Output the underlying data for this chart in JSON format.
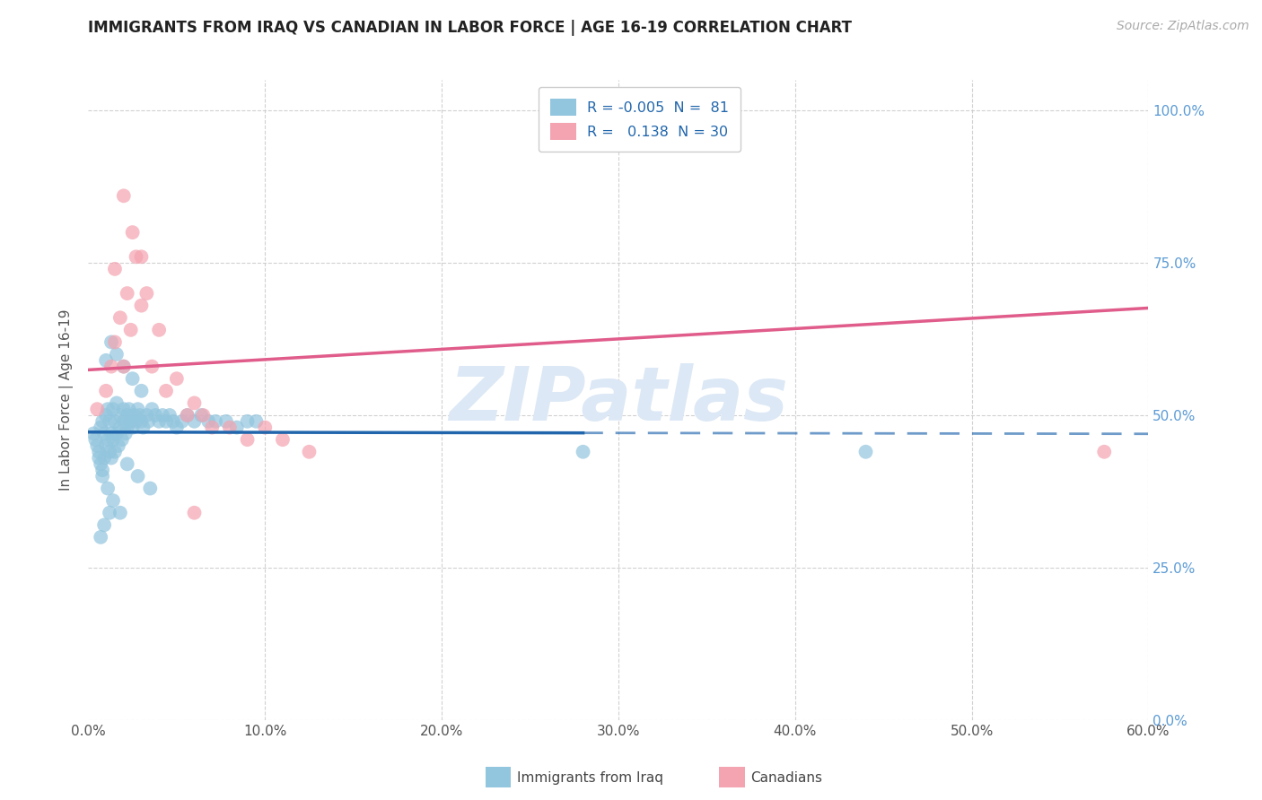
{
  "title": "IMMIGRANTS FROM IRAQ VS CANADIAN IN LABOR FORCE | AGE 16-19 CORRELATION CHART",
  "source_text": "Source: ZipAtlas.com",
  "ylabel": "In Labor Force | Age 16-19",
  "legend_label_1": "Immigrants from Iraq",
  "legend_label_2": "Canadians",
  "r1": -0.005,
  "n1": 81,
  "r2": 0.138,
  "n2": 30,
  "color_blue": "#92c5de",
  "color_pink": "#f4a3b0",
  "color_blue_line": "#2166ac",
  "color_pink_line": "#e05c8a",
  "xlim": [
    0.0,
    0.6
  ],
  "ylim": [
    0.0,
    1.05
  ],
  "ytick_vals": [
    0.0,
    0.25,
    0.5,
    0.75,
    1.0
  ],
  "xtick_vals": [
    0.0,
    0.1,
    0.2,
    0.3,
    0.4,
    0.5,
    0.6
  ],
  "background_color": "#ffffff",
  "grid_color": "#cccccc",
  "right_axis_color": "#5b9bd5",
  "watermark": "ZIPatlas",
  "watermark_color": "#dce8f5",
  "iraq_x": [
    0.003,
    0.004,
    0.005,
    0.006,
    0.006,
    0.007,
    0.007,
    0.008,
    0.008,
    0.009,
    0.009,
    0.01,
    0.01,
    0.011,
    0.011,
    0.012,
    0.012,
    0.013,
    0.013,
    0.014,
    0.014,
    0.015,
    0.015,
    0.016,
    0.016,
    0.017,
    0.018,
    0.018,
    0.019,
    0.02,
    0.02,
    0.021,
    0.022,
    0.022,
    0.023,
    0.024,
    0.025,
    0.026,
    0.027,
    0.028,
    0.029,
    0.03,
    0.031,
    0.033,
    0.034,
    0.036,
    0.038,
    0.04,
    0.042,
    0.044,
    0.046,
    0.048,
    0.05,
    0.053,
    0.056,
    0.06,
    0.064,
    0.068,
    0.072,
    0.078,
    0.084,
    0.09,
    0.095,
    0.01,
    0.013,
    0.016,
    0.02,
    0.025,
    0.03,
    0.008,
    0.011,
    0.014,
    0.018,
    0.022,
    0.028,
    0.035,
    0.012,
    0.009,
    0.007,
    0.28,
    0.44
  ],
  "iraq_y": [
    0.47,
    0.46,
    0.45,
    0.44,
    0.43,
    0.48,
    0.42,
    0.49,
    0.41,
    0.47,
    0.43,
    0.5,
    0.45,
    0.51,
    0.46,
    0.49,
    0.44,
    0.47,
    0.43,
    0.51,
    0.46,
    0.49,
    0.44,
    0.52,
    0.47,
    0.45,
    0.5,
    0.48,
    0.46,
    0.51,
    0.49,
    0.47,
    0.5,
    0.48,
    0.51,
    0.49,
    0.48,
    0.5,
    0.49,
    0.51,
    0.5,
    0.49,
    0.48,
    0.5,
    0.49,
    0.51,
    0.5,
    0.49,
    0.5,
    0.49,
    0.5,
    0.49,
    0.48,
    0.49,
    0.5,
    0.49,
    0.5,
    0.49,
    0.49,
    0.49,
    0.48,
    0.49,
    0.49,
    0.59,
    0.62,
    0.6,
    0.58,
    0.56,
    0.54,
    0.4,
    0.38,
    0.36,
    0.34,
    0.42,
    0.4,
    0.38,
    0.34,
    0.32,
    0.3,
    0.44,
    0.44
  ],
  "canada_x": [
    0.005,
    0.01,
    0.013,
    0.015,
    0.018,
    0.02,
    0.022,
    0.024,
    0.027,
    0.03,
    0.033,
    0.036,
    0.04,
    0.044,
    0.05,
    0.056,
    0.06,
    0.065,
    0.07,
    0.08,
    0.09,
    0.1,
    0.11,
    0.125,
    0.015,
    0.02,
    0.025,
    0.03,
    0.06,
    0.575
  ],
  "canada_y": [
    0.51,
    0.54,
    0.58,
    0.62,
    0.66,
    0.58,
    0.7,
    0.64,
    0.76,
    0.68,
    0.7,
    0.58,
    0.64,
    0.54,
    0.56,
    0.5,
    0.52,
    0.5,
    0.48,
    0.48,
    0.46,
    0.48,
    0.46,
    0.44,
    0.74,
    0.86,
    0.8,
    0.76,
    0.34,
    0.44
  ]
}
